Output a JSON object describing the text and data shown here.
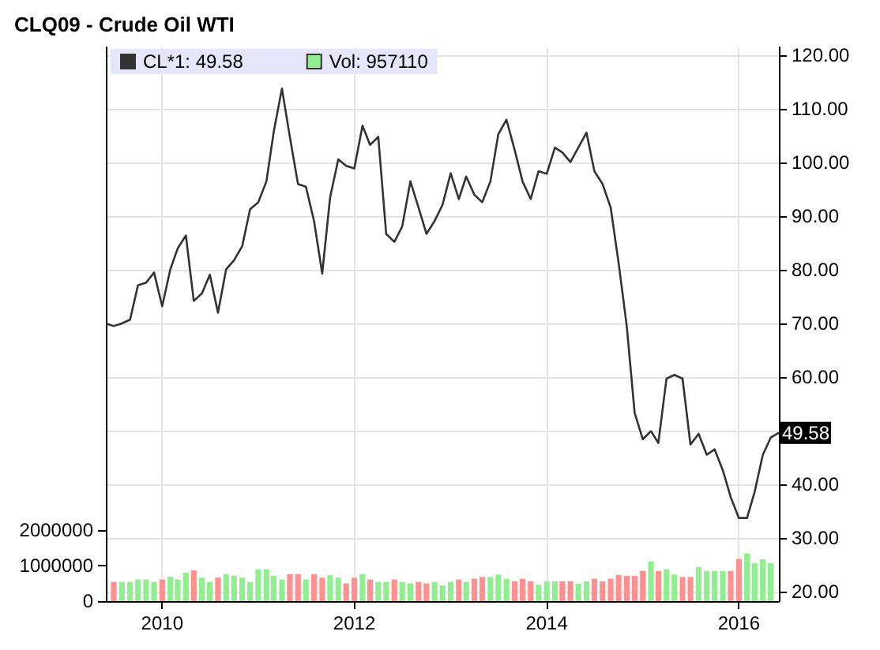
{
  "chart_data": {
    "type": "line",
    "title": "CLQ09 - Crude Oil WTI",
    "x": [
      "2009-06",
      "2009-07",
      "2009-08",
      "2009-09",
      "2009-10",
      "2009-11",
      "2009-12",
      "2010-01",
      "2010-02",
      "2010-03",
      "2010-04",
      "2010-05",
      "2010-06",
      "2010-07",
      "2010-08",
      "2010-09",
      "2010-10",
      "2010-11",
      "2010-12",
      "2011-01",
      "2011-02",
      "2011-03",
      "2011-04",
      "2011-05",
      "2011-06",
      "2011-07",
      "2011-08",
      "2011-09",
      "2011-10",
      "2011-11",
      "2011-12",
      "2012-01",
      "2012-02",
      "2012-03",
      "2012-04",
      "2012-05",
      "2012-06",
      "2012-07",
      "2012-08",
      "2012-09",
      "2012-10",
      "2012-11",
      "2012-12",
      "2013-01",
      "2013-02",
      "2013-03",
      "2013-04",
      "2013-05",
      "2013-06",
      "2013-07",
      "2013-08",
      "2013-09",
      "2013-10",
      "2013-11",
      "2013-12",
      "2014-01",
      "2014-02",
      "2014-03",
      "2014-04",
      "2014-05",
      "2014-06",
      "2014-07",
      "2014-08",
      "2014-09",
      "2014-10",
      "2014-11",
      "2014-12",
      "2015-01",
      "2015-02",
      "2015-03",
      "2015-04",
      "2015-05",
      "2015-06",
      "2015-07",
      "2015-08",
      "2015-09",
      "2015-10",
      "2015-11",
      "2015-12",
      "2016-01",
      "2016-02",
      "2016-03",
      "2016-04",
      "2016-05",
      "2016-06"
    ],
    "series": [
      {
        "name": "CL*1: 49.58",
        "color": "#333333",
        "values": [
          70.0,
          69.5,
          70.0,
          70.7,
          77.1,
          77.6,
          79.5,
          73.2,
          80.1,
          84.0,
          86.4,
          74.2,
          75.6,
          79.1,
          72.0,
          80.1,
          81.8,
          84.4,
          91.3,
          92.6,
          96.5,
          105.8,
          113.8,
          104.8,
          96.0,
          95.5,
          89.1,
          79.3,
          93.5,
          100.6,
          99.4,
          98.9,
          106.9,
          103.3,
          104.8,
          86.7,
          85.2,
          88.1,
          96.5,
          91.6,
          86.7,
          89.1,
          92.1,
          98.0,
          93.2,
          97.4,
          94.0,
          92.6,
          96.5,
          105.3,
          108.0,
          102.4,
          96.5,
          93.2,
          98.4,
          97.9,
          102.8,
          101.9,
          100.1,
          102.8,
          105.6,
          98.4,
          96.0,
          91.6,
          81.3,
          69.5,
          53.3,
          48.4,
          49.9,
          47.7,
          59.7,
          60.4,
          59.7,
          47.4,
          49.4,
          45.5,
          46.5,
          42.6,
          37.6,
          33.7,
          33.7,
          38.6,
          45.5,
          48.7,
          49.58
        ]
      },
      {
        "name": "Vol: 957110",
        "type": "bar",
        "axis": "y2",
        "color": "#90ee90",
        "values": [
          null,
          540000,
          540000,
          540000,
          610000,
          610000,
          540000,
          610000,
          690000,
          610000,
          800000,
          870000,
          660000,
          540000,
          660000,
          760000,
          710000,
          660000,
          540000,
          900000,
          900000,
          710000,
          610000,
          760000,
          760000,
          610000,
          760000,
          660000,
          730000,
          660000,
          500000,
          660000,
          760000,
          610000,
          540000,
          540000,
          610000,
          540000,
          500000,
          540000,
          500000,
          540000,
          440000,
          540000,
          610000,
          540000,
          630000,
          680000,
          680000,
          750000,
          630000,
          560000,
          630000,
          560000,
          460000,
          560000,
          560000,
          560000,
          560000,
          490000,
          560000,
          630000,
          560000,
          630000,
          740000,
          710000,
          710000,
          850000,
          1120000,
          850000,
          900000,
          750000,
          680000,
          680000,
          960000,
          850000,
          850000,
          850000,
          850000,
          1190000,
          1340000,
          1070000,
          1180000,
          1070000,
          null
        ],
        "colors": [
          null,
          "#ff9090",
          "#90ee90",
          "#90ee90",
          "#90ee90",
          "#90ee90",
          "#90ee90",
          "#ff9090",
          "#90ee90",
          "#90ee90",
          "#90ee90",
          "#ff9090",
          "#90ee90",
          "#90ee90",
          "#ff9090",
          "#90ee90",
          "#90ee90",
          "#90ee90",
          "#90ee90",
          "#90ee90",
          "#90ee90",
          "#90ee90",
          "#90ee90",
          "#ff9090",
          "#ff9090",
          "#90ee90",
          "#ff9090",
          "#ff9090",
          "#90ee90",
          "#90ee90",
          "#ff9090",
          "#ff9090",
          "#90ee90",
          "#ff9090",
          "#90ee90",
          "#90ee90",
          "#ff9090",
          "#90ee90",
          "#90ee90",
          "#ff9090",
          "#ff9090",
          "#90ee90",
          "#90ee90",
          "#90ee90",
          "#ff9090",
          "#90ee90",
          "#ff9090",
          "#ff9090",
          "#90ee90",
          "#90ee90",
          "#90ee90",
          "#ff9090",
          "#ff9090",
          "#ff9090",
          "#90ee90",
          "#90ee90",
          "#90ee90",
          "#ff9090",
          "#ff9090",
          "#90ee90",
          "#90ee90",
          "#ff9090",
          "#ff9090",
          "#ff9090",
          "#ff9090",
          "#ff9090",
          "#ff9090",
          "#ff9090",
          "#90ee90",
          "#ff9090",
          "#90ee90",
          "#90ee90",
          "#ff9090",
          "#ff9090",
          "#90ee90",
          "#90ee90",
          "#90ee90",
          "#90ee90",
          "#ff9090",
          "#ff9090",
          "#90ee90",
          "#90ee90",
          "#90ee90",
          "#90ee90",
          null
        ]
      }
    ],
    "xlim": [
      "2009-06",
      "2016-06"
    ],
    "xticks": [
      {
        "value": "2010-01",
        "label": "2010"
      },
      {
        "value": "2012-01",
        "label": "2012"
      },
      {
        "value": "2014-01",
        "label": "2014"
      },
      {
        "value": "2016-01",
        "label": "2016"
      }
    ],
    "ylim": [
      18.2,
      121.5
    ],
    "yticks": [
      {
        "value": 20,
        "label": "20.00"
      },
      {
        "value": 30,
        "label": "30.00"
      },
      {
        "value": 40,
        "label": "40.00"
      },
      {
        "value": 50,
        "label": null
      },
      {
        "value": 60,
        "label": "60.00"
      },
      {
        "value": 70,
        "label": "70.00"
      },
      {
        "value": 80,
        "label": "80.00"
      },
      {
        "value": 90,
        "label": "90.00"
      },
      {
        "value": 100,
        "label": "100.00"
      },
      {
        "value": 110,
        "label": "110.00"
      },
      {
        "value": 120,
        "label": "120.00"
      }
    ],
    "y2lim": [
      0,
      15600000
    ],
    "y2ticks": [
      0,
      1000000,
      2000000
    ],
    "annotations": [
      {
        "text": "49.58",
        "x": "2016-06",
        "y": 49.58
      }
    ],
    "grid": true,
    "legend": "top left",
    "marker": "none"
  }
}
